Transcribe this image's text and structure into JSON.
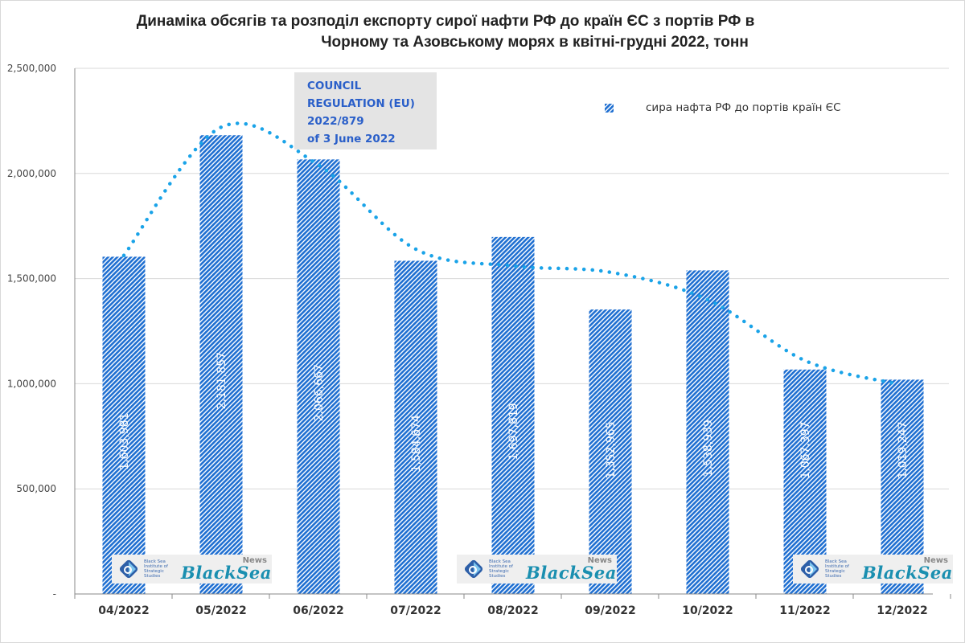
{
  "chart_data": {
    "type": "bar",
    "title_lines": [
      "Динаміка обсягів та розподіл експорту сирої нафти РФ до країн ЄС  з портів РФ в",
      "Чорному та Азовському морях в квітні-грудні 2022, тонн"
    ],
    "categories": [
      "04/2022",
      "05/2022",
      "06/2022",
      "07/2022",
      "08/2022",
      "09/2022",
      "10/2022",
      "11/2022",
      "12/2022"
    ],
    "series": [
      {
        "name": "сира нафта РФ до портів країн ЄС",
        "values": [
          1603981,
          2181857,
          2066667,
          1584674,
          1697819,
          1352965,
          1538939,
          1067397,
          1019247
        ],
        "data_labels": [
          "1,603,981",
          "2,181,857",
          "2,066,667",
          "1,584,674",
          "1,697,819",
          "1,352,965",
          "1,538,939",
          "1,067,397",
          "1,019,247"
        ],
        "color": "#1f6fd1",
        "pattern": "diagonal-hatch"
      }
    ],
    "trendline": {
      "style": "dotted",
      "color": "#1aa3e8",
      "approx_values": [
        1610000,
        2220000,
        2040000,
        1640000,
        1560000,
        1530000,
        1400000,
        1110000,
        1000000
      ]
    },
    "yticks": [
      "-",
      "500,000",
      "1,000,000",
      "1,500,000",
      "2,000,000",
      "2,500,000"
    ],
    "ytick_values": [
      0,
      500000,
      1000000,
      1500000,
      2000000,
      2500000
    ],
    "ylim": [
      0,
      2500000
    ],
    "grid": true,
    "legend_position": "top-right",
    "annotation": [
      "COUNCIL",
      "REGULATION (EU)",
      "2022/879",
      "of 3 June 2022"
    ]
  },
  "logos": [
    {
      "institute": [
        "Black Sea",
        "Institute of",
        "Strategic",
        "Studies"
      ],
      "brand": "BlackSea",
      "tag": "News"
    },
    {
      "institute": [
        "Black Sea",
        "Institute of",
        "Strategic",
        "Studies"
      ],
      "brand": "BlackSea",
      "tag": "News"
    },
    {
      "institute": [
        "Black Sea",
        "Institute of",
        "Strategic",
        "Studies"
      ],
      "brand": "BlackSea",
      "tag": "News"
    }
  ]
}
